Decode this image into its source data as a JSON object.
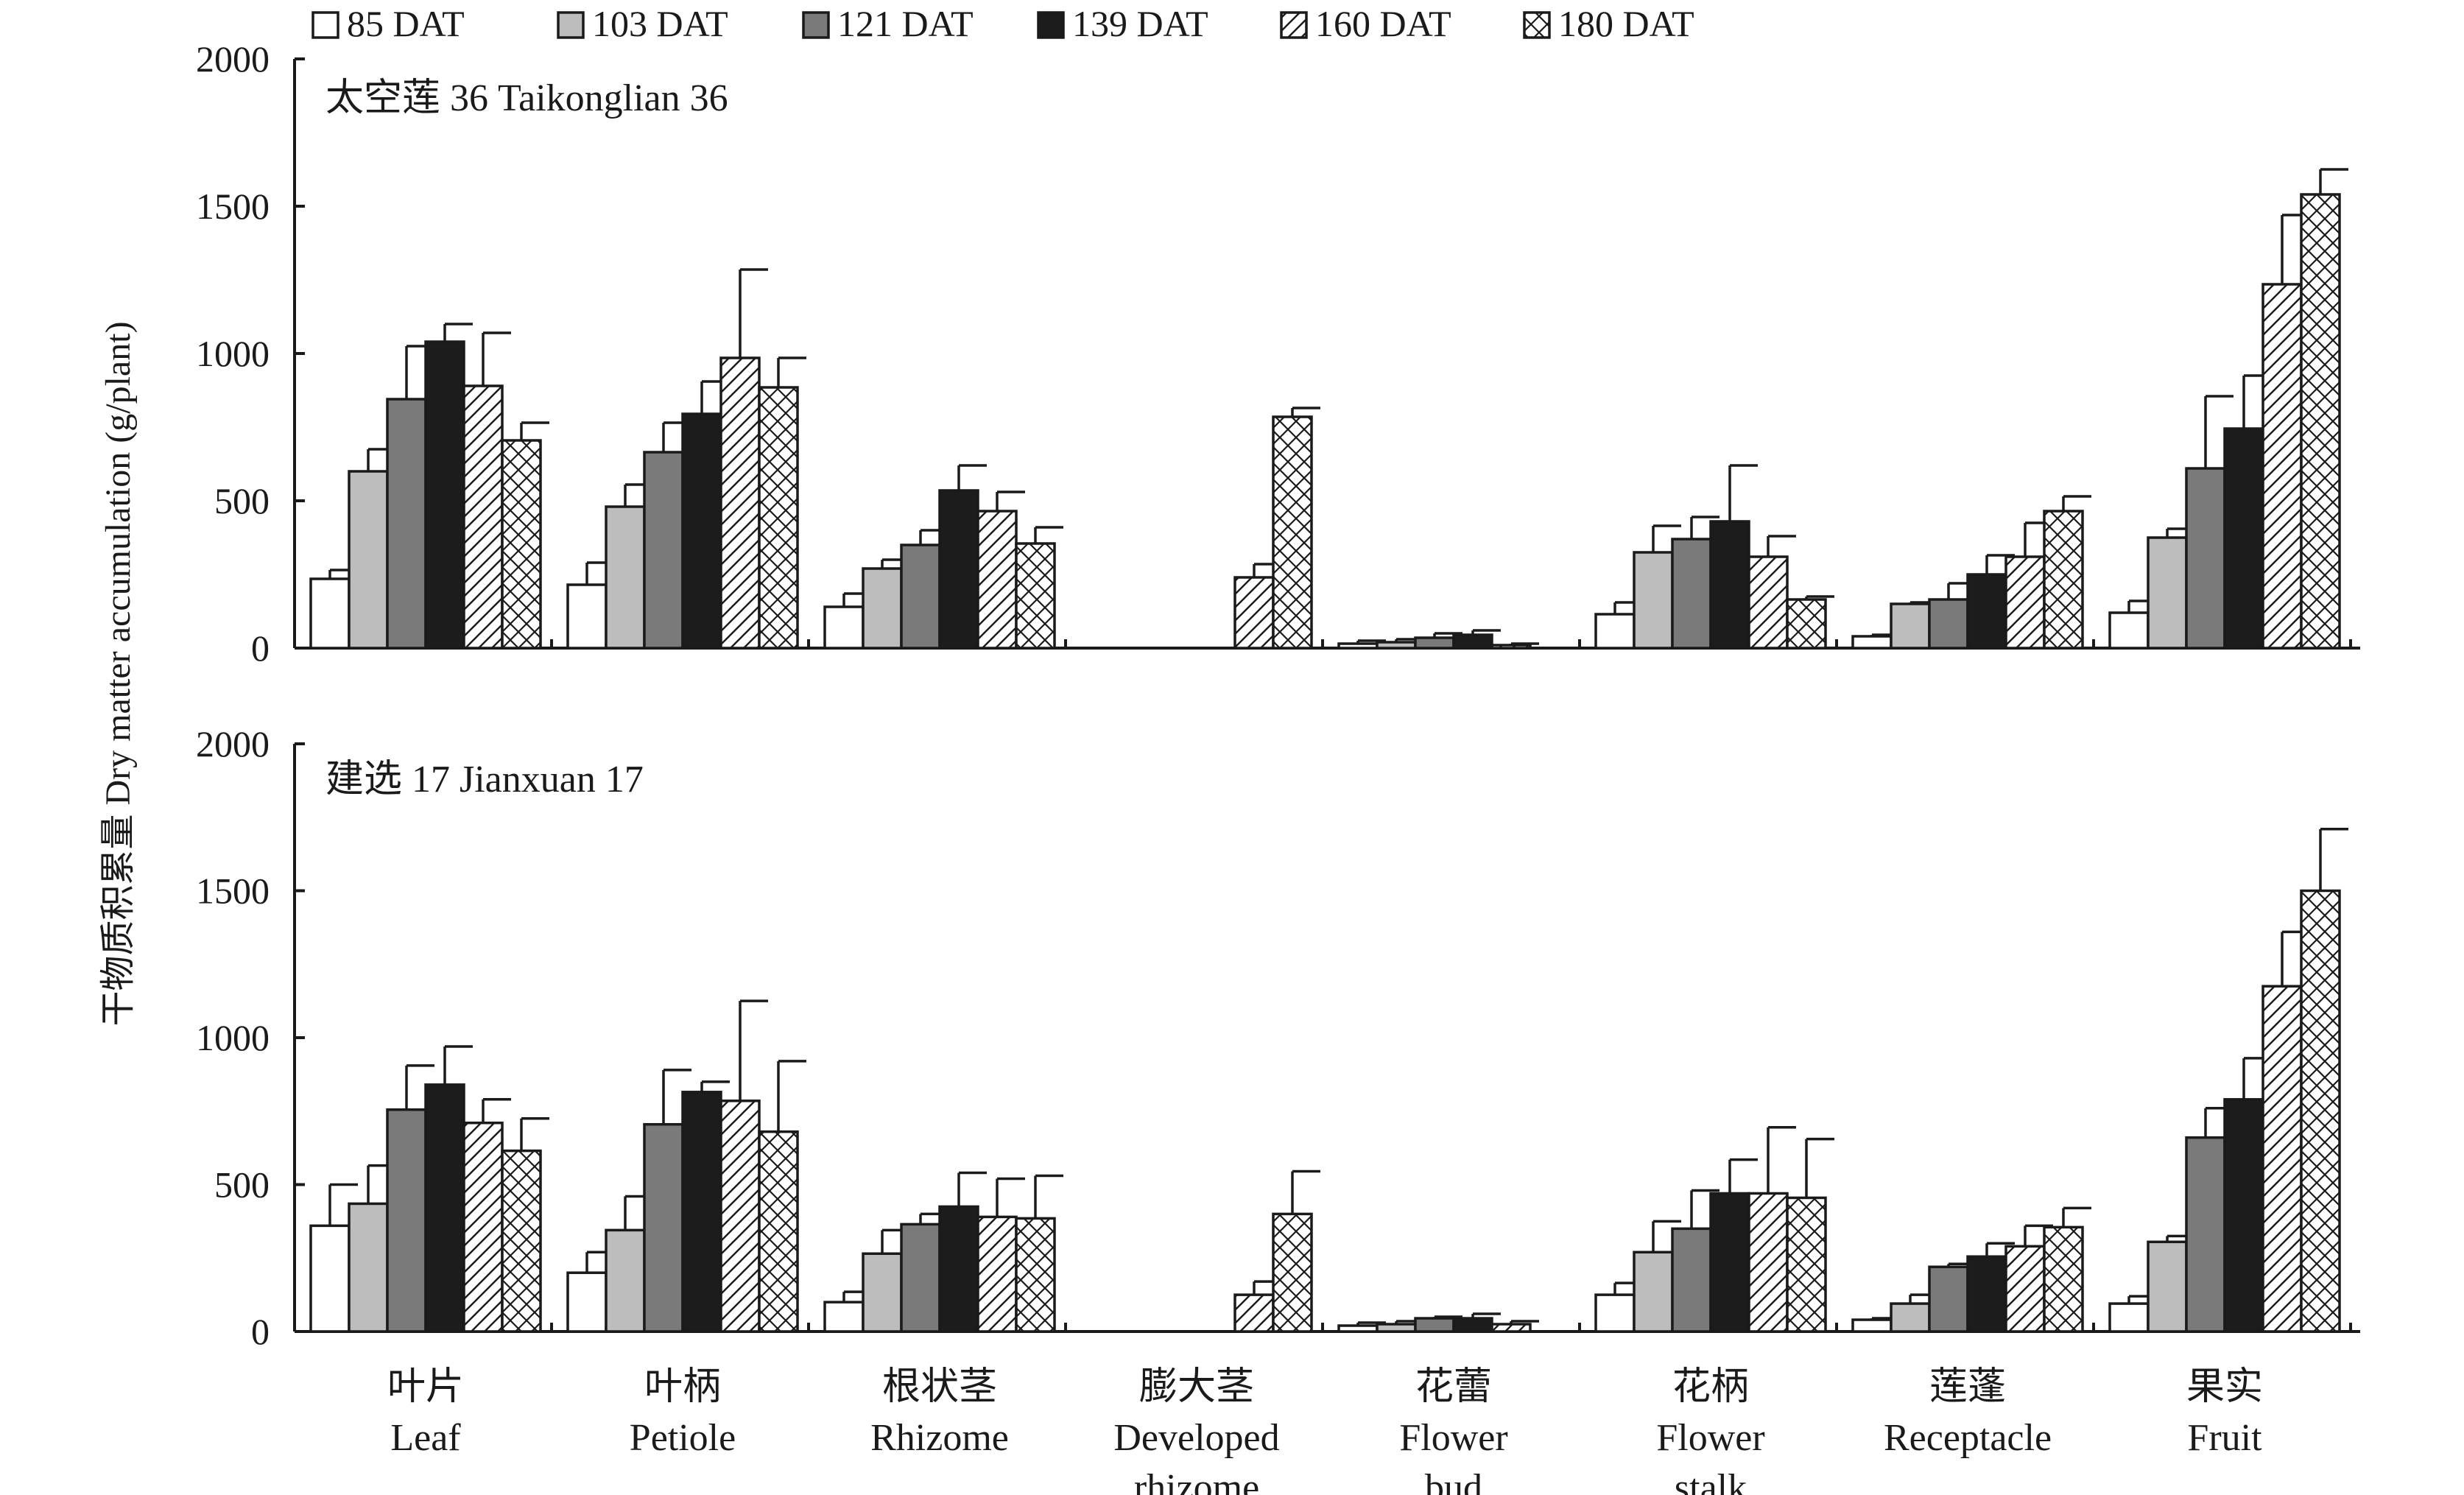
{
  "chart_data": {
    "type": "bar",
    "ylabel": "干物质积累量 Dry matter accumulation (g/plant)",
    "ylim": [
      0,
      2000
    ],
    "yticks": [
      0,
      500,
      1000,
      1500,
      2000
    ],
    "categories": [
      {
        "zh": "叶片",
        "en": "Leaf"
      },
      {
        "zh": "叶柄",
        "en": "Petiole"
      },
      {
        "zh": "根状茎",
        "en": "Rhizome"
      },
      {
        "zh": "膨大茎",
        "en": "Developed rhizome"
      },
      {
        "zh": "花蕾",
        "en": "Flower bud"
      },
      {
        "zh": "花柄",
        "en": "Flower stalk"
      },
      {
        "zh": "莲蓬",
        "en": "Receptacle"
      },
      {
        "zh": "果实",
        "en": "Fruit"
      }
    ],
    "legend": [
      {
        "name": "85 DAT",
        "fill": "#ffffff",
        "pattern": "none"
      },
      {
        "name": "103 DAT",
        "fill": "#bdbdbd",
        "pattern": "none"
      },
      {
        "name": "121 DAT",
        "fill": "#7a7a7a",
        "pattern": "none"
      },
      {
        "name": "139 DAT",
        "fill": "#1c1c1c",
        "pattern": "none"
      },
      {
        "name": "160 DAT",
        "fill": "#ffffff",
        "pattern": "diagonal-hatch"
      },
      {
        "name": "180 DAT",
        "fill": "#ffffff",
        "pattern": "cross-hatch"
      }
    ],
    "panels": [
      {
        "label": "太空莲 36 Taikonglian 36",
        "values": [
          [
            235,
            600,
            845,
            1040,
            890,
            705
          ],
          [
            215,
            480,
            665,
            795,
            985,
            885
          ],
          [
            140,
            270,
            350,
            535,
            465,
            355
          ],
          [
            null,
            null,
            null,
            null,
            240,
            785
          ],
          [
            15,
            20,
            35,
            45,
            10,
            null
          ],
          [
            115,
            325,
            370,
            430,
            310,
            165
          ],
          [
            40,
            150,
            165,
            250,
            310,
            465
          ],
          [
            120,
            375,
            610,
            745,
            1235,
            1540
          ]
        ],
        "errors": [
          [
            30,
            75,
            180,
            60,
            180,
            60
          ],
          [
            75,
            75,
            100,
            110,
            300,
            100
          ],
          [
            45,
            30,
            50,
            85,
            65,
            55
          ],
          [
            null,
            null,
            null,
            null,
            45,
            30
          ],
          [
            10,
            10,
            15,
            15,
            5,
            null
          ],
          [
            40,
            90,
            75,
            190,
            70,
            10
          ],
          [
            5,
            5,
            55,
            65,
            115,
            50
          ],
          [
            40,
            30,
            245,
            180,
            235,
            85
          ]
        ]
      },
      {
        "label": "建选 17 Jianxuan 17",
        "values": [
          [
            360,
            435,
            755,
            840,
            710,
            615
          ],
          [
            200,
            345,
            705,
            815,
            785,
            680
          ],
          [
            100,
            265,
            365,
            425,
            390,
            385
          ],
          [
            null,
            null,
            null,
            null,
            125,
            400
          ],
          [
            20,
            25,
            45,
            45,
            25,
            null
          ],
          [
            125,
            270,
            350,
            470,
            470,
            455
          ],
          [
            40,
            95,
            220,
            255,
            290,
            355
          ],
          [
            95,
            305,
            660,
            790,
            1175,
            1500
          ]
        ],
        "errors": [
          [
            140,
            130,
            150,
            130,
            80,
            110
          ],
          [
            70,
            115,
            185,
            35,
            340,
            240
          ],
          [
            35,
            80,
            35,
            115,
            130,
            145
          ],
          [
            null,
            null,
            null,
            null,
            45,
            145
          ],
          [
            10,
            10,
            5,
            15,
            10,
            null
          ],
          [
            40,
            105,
            130,
            115,
            225,
            200
          ],
          [
            5,
            30,
            10,
            45,
            70,
            65
          ],
          [
            25,
            20,
            100,
            140,
            185,
            210
          ]
        ]
      }
    ]
  }
}
